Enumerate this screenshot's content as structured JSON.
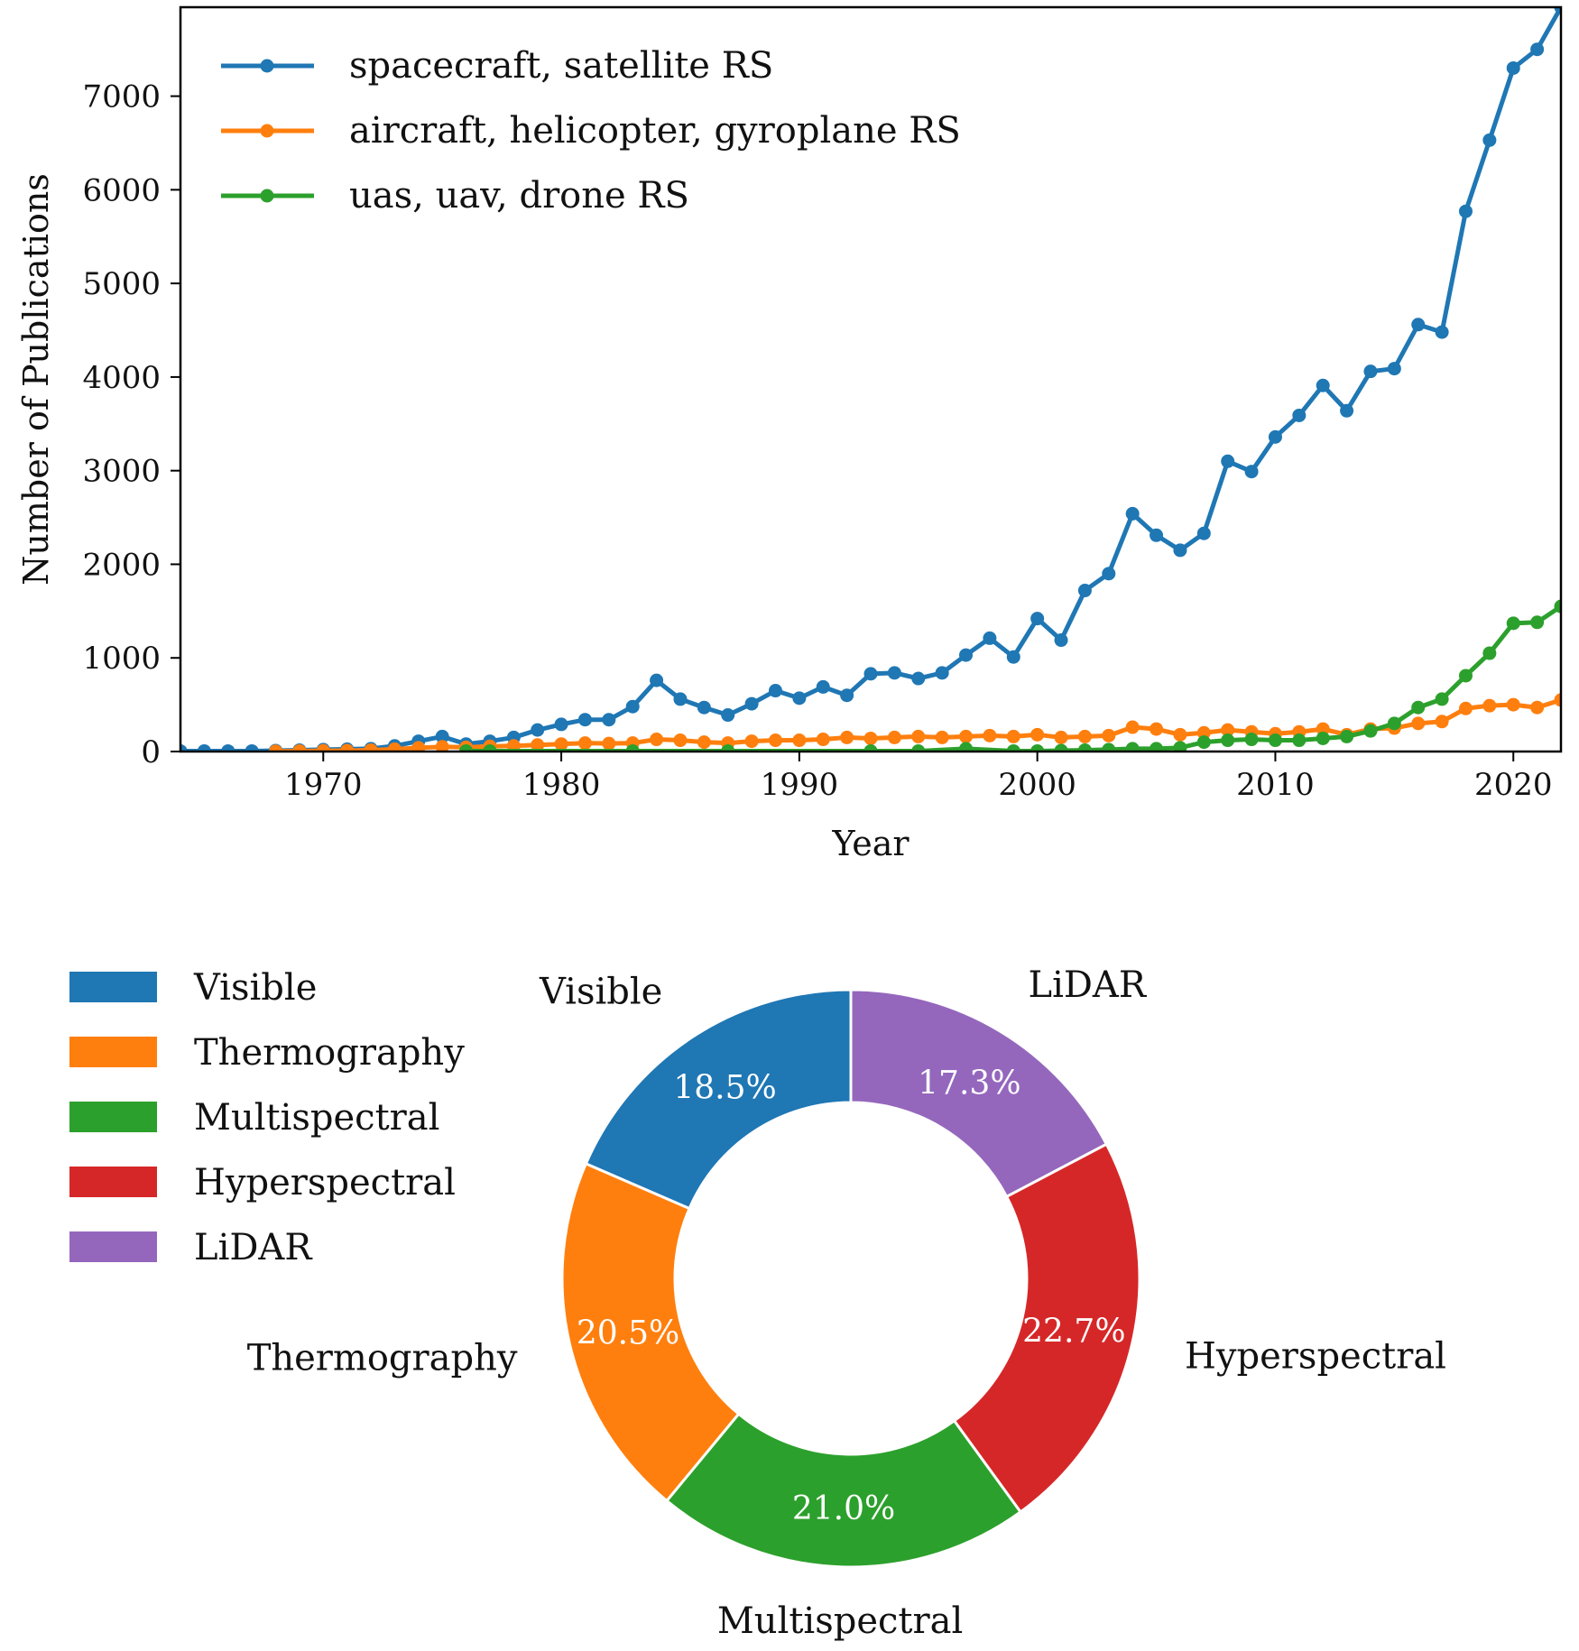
{
  "chart_data": [
    {
      "type": "line",
      "xlabel": "Year",
      "ylabel": "Number of Publications",
      "xlim": [
        1964,
        2022
      ],
      "ylim": [
        0,
        7950
      ],
      "xticks": [
        1970,
        1980,
        1990,
        2000,
        2010,
        2020
      ],
      "yticks": [
        0,
        1000,
        2000,
        3000,
        4000,
        5000,
        6000,
        7000
      ],
      "grid": false,
      "legend": "top-left",
      "series": [
        {
          "name": "spacecraft, satellite RS",
          "color": "#1f77b4",
          "x": [
            1964,
            1965,
            1966,
            1967,
            1968,
            1969,
            1970,
            1971,
            1972,
            1973,
            1974,
            1975,
            1976,
            1977,
            1978,
            1979,
            1980,
            1981,
            1982,
            1983,
            1984,
            1985,
            1986,
            1987,
            1988,
            1989,
            1990,
            1991,
            1992,
            1993,
            1994,
            1995,
            1996,
            1997,
            1998,
            1999,
            2000,
            2001,
            2002,
            2003,
            2004,
            2005,
            2006,
            2007,
            2008,
            2009,
            2010,
            2011,
            2012,
            2013,
            2014,
            2015,
            2016,
            2017,
            2018,
            2019,
            2020,
            2021,
            2022
          ],
          "y": [
            5,
            5,
            5,
            5,
            10,
            15,
            20,
            25,
            30,
            60,
            110,
            160,
            80,
            110,
            150,
            230,
            290,
            340,
            340,
            480,
            760,
            560,
            470,
            390,
            510,
            650,
            570,
            690,
            600,
            830,
            840,
            780,
            840,
            1030,
            1210,
            1010,
            1420,
            1190,
            1720,
            1900,
            2540,
            2310,
            2150,
            2330,
            3100,
            2990,
            3360,
            3590,
            3910,
            3640,
            4060,
            4090,
            4560,
            4480,
            5770,
            6530,
            7300,
            7500,
            7950
          ]
        },
        {
          "name": "aircraft, helicopter, gyroplane RS",
          "color": "#ff7f0e",
          "x": [
            1968,
            1969,
            1970,
            1971,
            1972,
            1973,
            1974,
            1975,
            1976,
            1977,
            1978,
            1979,
            1980,
            1981,
            1982,
            1983,
            1984,
            1985,
            1986,
            1987,
            1988,
            1989,
            1990,
            1991,
            1992,
            1993,
            1994,
            1995,
            1996,
            1997,
            1998,
            1999,
            2000,
            2001,
            2002,
            2003,
            2004,
            2005,
            2006,
            2007,
            2008,
            2009,
            2010,
            2011,
            2012,
            2013,
            2014,
            2015,
            2016,
            2017,
            2018,
            2019,
            2020,
            2021,
            2022
          ],
          "y": [
            2,
            5,
            8,
            10,
            15,
            25,
            40,
            50,
            45,
            55,
            60,
            70,
            80,
            90,
            85,
            90,
            130,
            120,
            100,
            90,
            110,
            120,
            120,
            130,
            150,
            140,
            150,
            160,
            150,
            160,
            170,
            160,
            180,
            150,
            160,
            170,
            260,
            240,
            180,
            200,
            230,
            210,
            190,
            210,
            240,
            180,
            240,
            250,
            300,
            320,
            460,
            490,
            500,
            470,
            550
          ]
        },
        {
          "name": "uas, uav, drone RS",
          "color": "#2ca02c",
          "x": [
            1976,
            1977,
            1983,
            1987,
            1993,
            1995,
            1997,
            1999,
            2000,
            2001,
            2002,
            2003,
            2004,
            2005,
            2006,
            2007,
            2008,
            2009,
            2010,
            2011,
            2012,
            2013,
            2014,
            2015,
            2016,
            2017,
            2018,
            2019,
            2020,
            2021,
            2022
          ],
          "y": [
            5,
            5,
            5,
            5,
            5,
            5,
            30,
            5,
            5,
            10,
            15,
            20,
            30,
            30,
            40,
            100,
            120,
            130,
            120,
            120,
            140,
            160,
            220,
            300,
            470,
            560,
            810,
            1050,
            1370,
            1380,
            1550
          ]
        }
      ]
    },
    {
      "type": "pie",
      "style": "donut",
      "legend": "top-left",
      "categories": [
        "Visible",
        "Thermography",
        "Multispectral",
        "Hyperspectral",
        "LiDAR"
      ],
      "values": [
        18.5,
        20.5,
        21.0,
        22.7,
        17.3
      ],
      "value_labels": [
        "18.5%",
        "20.5%",
        "21.0%",
        "22.7%",
        "17.3%"
      ],
      "colors": [
        "#1f77b4",
        "#ff7f0e",
        "#2ca02c",
        "#d62728",
        "#9467bd"
      ]
    }
  ]
}
